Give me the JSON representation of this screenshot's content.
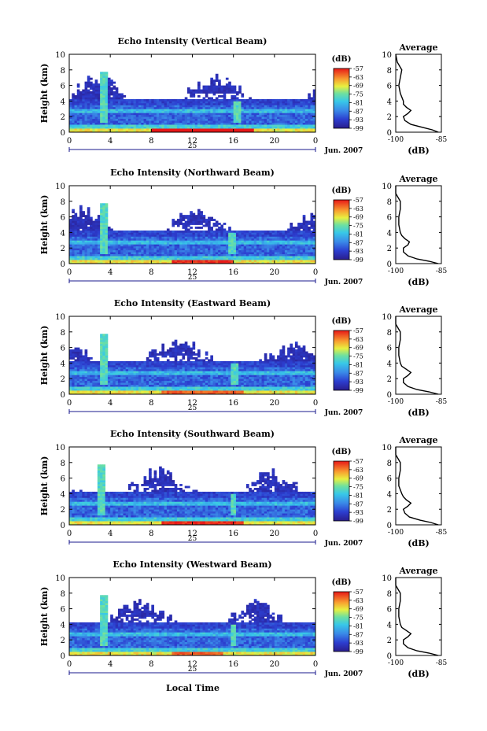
{
  "figure": {
    "xlabel_bottom": "Local Time",
    "date_label": "Jun. 2007",
    "day_label": "25",
    "ylabel": "Height (km)",
    "colorbar_unit": "(dB)",
    "colorbar_ticks": [
      "-57",
      "-63",
      "-69",
      "-75",
      "-81",
      "-87",
      "-93",
      "-99"
    ],
    "avg_title": "Average",
    "avg_xlabel": "(dB)"
  },
  "chart_data": [
    {
      "type": "heatmap",
      "title": "Echo Intensity (Vertical Beam)",
      "ylabel": "Height (km)",
      "x_ticks": [
        "0",
        "4",
        "8",
        "12",
        "16",
        "20",
        "0"
      ],
      "y_ticks": [
        "0",
        "2",
        "4",
        "6",
        "8",
        "10"
      ],
      "xlim_hours": [
        0,
        24
      ],
      "ylim_km": [
        0,
        10
      ],
      "clim_db": [
        -99,
        -57
      ],
      "bright_layer": {
        "t_start": 8,
        "t_end": 18,
        "intensity_db": -57
      },
      "convective_columns_hours": [
        3.3,
        16.3
      ],
      "average_profile": {
        "xlim_db": [
          -100,
          -85
        ],
        "ylim_km": [
          0,
          10
        ],
        "x_ticks": [
          "-100",
          "-85"
        ],
        "height_km": [
          0,
          0.3,
          0.6,
          1.0,
          1.5,
          2.0,
          2.4,
          2.8,
          3.2,
          3.6,
          4.0,
          5.0,
          6.0,
          7.0,
          8.0,
          9.0,
          10.0
        ],
        "db": [
          -86,
          -88,
          -91,
          -95,
          -97,
          -97.5,
          -96,
          -95,
          -96.5,
          -97.5,
          -97.5,
          -98.5,
          -99,
          -98.5,
          -98,
          -99.5,
          -100
        ]
      }
    },
    {
      "type": "heatmap",
      "title": "Echo Intensity (Northward Beam)",
      "ylabel": "Height (km)",
      "x_ticks": [
        "0",
        "4",
        "8",
        "12",
        "16",
        "20",
        "0"
      ],
      "y_ticks": [
        "0",
        "2",
        "4",
        "6",
        "8",
        "10"
      ],
      "xlim_hours": [
        0,
        24
      ],
      "ylim_km": [
        0,
        10
      ],
      "clim_db": [
        -99,
        -57
      ],
      "bright_layer": {
        "t_start": 10,
        "t_end": 16,
        "intensity_db": -60
      },
      "convective_columns_hours": [
        3.4,
        15.9
      ],
      "average_profile": {
        "xlim_db": [
          -100,
          -85
        ],
        "ylim_km": [
          0,
          10
        ],
        "x_ticks": [
          "-100",
          "-85"
        ],
        "height_km": [
          0,
          0.3,
          0.6,
          1.0,
          1.5,
          2.0,
          2.4,
          2.8,
          3.2,
          3.6,
          4.0,
          5.0,
          6.0,
          7.0,
          8.0,
          9.0,
          10.0
        ],
        "db": [
          -86,
          -89,
          -93,
          -96,
          -97.5,
          -97.5,
          -96,
          -95.5,
          -97,
          -98,
          -98.5,
          -99,
          -99,
          -98.5,
          -98.5,
          -100,
          -100
        ]
      }
    },
    {
      "type": "heatmap",
      "title": "Echo Intensity (Eastward Beam)",
      "ylabel": "Height (km)",
      "x_ticks": [
        "0",
        "4",
        "8",
        "12",
        "16",
        "20",
        "0"
      ],
      "y_ticks": [
        "0",
        "2",
        "4",
        "6",
        "8",
        "10"
      ],
      "xlim_hours": [
        0,
        24
      ],
      "ylim_km": [
        0,
        10
      ],
      "clim_db": [
        -99,
        -57
      ],
      "bright_layer": {
        "t_start": 9,
        "t_end": 17,
        "intensity_db": -63
      },
      "convective_columns_hours": [
        3.3,
        16.1
      ],
      "average_profile": {
        "xlim_db": [
          -100,
          -85
        ],
        "ylim_km": [
          0,
          10
        ],
        "x_ticks": [
          "-100",
          "-85"
        ],
        "height_km": [
          0,
          0.3,
          0.6,
          1.0,
          1.5,
          2.0,
          2.4,
          2.8,
          3.2,
          3.6,
          4.0,
          5.0,
          6.0,
          7.0,
          8.0,
          9.0,
          10.0
        ],
        "db": [
          -86,
          -89,
          -93,
          -96,
          -97.5,
          -97.5,
          -96,
          -95,
          -96.5,
          -98,
          -98.5,
          -99,
          -99,
          -98.5,
          -98.5,
          -100,
          -100
        ]
      }
    },
    {
      "type": "heatmap",
      "title": "Echo Intensity (Southward Beam)",
      "ylabel": "Height (km)",
      "x_ticks": [
        "0",
        "4",
        "8",
        "12",
        "16",
        "20",
        "0"
      ],
      "y_ticks": [
        "0",
        "2",
        "4",
        "6",
        "8",
        "10"
      ],
      "xlim_hours": [
        0,
        24
      ],
      "ylim_km": [
        0,
        10
      ],
      "clim_db": [
        -99,
        -57
      ],
      "bright_layer": {
        "t_start": 9,
        "t_end": 17,
        "intensity_db": -60
      },
      "convective_columns_hours": [
        3.2,
        16.0
      ],
      "average_profile": {
        "xlim_db": [
          -100,
          -85
        ],
        "ylim_km": [
          0,
          10
        ],
        "x_ticks": [
          "-100",
          "-85"
        ],
        "height_km": [
          0,
          0.3,
          0.6,
          1.0,
          1.5,
          2.0,
          2.4,
          2.8,
          3.2,
          3.6,
          4.0,
          5.0,
          6.0,
          7.0,
          8.0,
          9.0,
          10.0
        ],
        "db": [
          -86,
          -88.5,
          -92,
          -95.5,
          -97,
          -97.5,
          -96,
          -95,
          -96.5,
          -97.5,
          -98,
          -99,
          -99,
          -98.5,
          -98.5,
          -100,
          -100
        ]
      }
    },
    {
      "type": "heatmap",
      "title": "Echo Intensity (Westward Beam)",
      "ylabel": "Height (km)",
      "x_ticks": [
        "0",
        "4",
        "8",
        "12",
        "16",
        "20",
        "0"
      ],
      "y_ticks": [
        "0",
        "2",
        "4",
        "6",
        "8",
        "10"
      ],
      "xlim_hours": [
        0,
        24
      ],
      "ylim_km": [
        0,
        10
      ],
      "clim_db": [
        -99,
        -57
      ],
      "bright_layer": {
        "t_start": 10,
        "t_end": 15,
        "intensity_db": -63
      },
      "convective_columns_hours": [
        3.3,
        16.0
      ],
      "average_profile": {
        "xlim_db": [
          -100,
          -85
        ],
        "ylim_km": [
          0,
          10
        ],
        "x_ticks": [
          "-100",
          "-85"
        ],
        "height_km": [
          0,
          0.3,
          0.6,
          1.0,
          1.5,
          2.0,
          2.4,
          2.8,
          3.2,
          3.6,
          4.0,
          5.0,
          6.0,
          7.0,
          8.0,
          9.0,
          10.0
        ],
        "db": [
          -86,
          -89,
          -93,
          -96,
          -97.5,
          -97.5,
          -96,
          -95,
          -96.5,
          -98,
          -98.5,
          -99,
          -99,
          -98.5,
          -98.5,
          -100,
          -100
        ]
      }
    }
  ]
}
